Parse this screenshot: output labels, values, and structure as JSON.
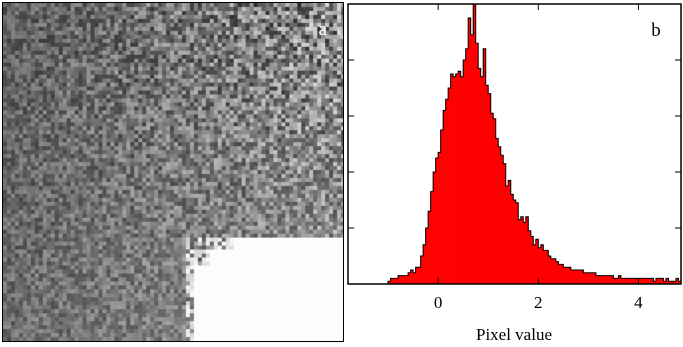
{
  "panels": {
    "a_label": "a",
    "b_label": "b"
  },
  "image_panel": {
    "type": "grayscale-image"
  },
  "colors": {
    "bar_fill": "#ff0000",
    "bar_stroke": "#000000"
  },
  "chart_data": {
    "type": "bar",
    "title": "",
    "xlabel": "Pixel value",
    "ylabel": "",
    "xlim": [
      -1.8,
      4.85
    ],
    "ylim": [
      0,
      1.0
    ],
    "x_ticks": [
      0,
      2,
      4
    ],
    "x_tick_labels": [
      "0",
      "2",
      "4"
    ],
    "y_ticks": [
      0.2,
      0.4,
      0.6,
      0.8
    ],
    "grid": false,
    "bin_width": 0.05,
    "x": [
      -1.0,
      -0.95,
      -0.9,
      -0.85,
      -0.8,
      -0.75,
      -0.7,
      -0.65,
      -0.6,
      -0.55,
      -0.5,
      -0.45,
      -0.4,
      -0.35,
      -0.3,
      -0.25,
      -0.2,
      -0.15,
      -0.1,
      -0.05,
      0.0,
      0.05,
      0.1,
      0.15,
      0.2,
      0.25,
      0.3,
      0.35,
      0.4,
      0.45,
      0.5,
      0.55,
      0.6,
      0.65,
      0.7,
      0.75,
      0.8,
      0.85,
      0.9,
      0.95,
      1.0,
      1.05,
      1.1,
      1.15,
      1.2,
      1.25,
      1.3,
      1.35,
      1.4,
      1.45,
      1.5,
      1.55,
      1.6,
      1.65,
      1.7,
      1.75,
      1.8,
      1.85,
      1.9,
      1.95,
      2.0,
      2.05,
      2.1,
      2.15,
      2.2,
      2.25,
      2.3,
      2.35,
      2.4,
      2.45,
      2.5,
      2.55,
      2.6,
      2.65,
      2.7,
      2.75,
      2.8,
      2.85,
      2.9,
      2.95,
      3.0,
      3.05,
      3.1,
      3.15,
      3.2,
      3.25,
      3.3,
      3.35,
      3.4,
      3.45,
      3.5,
      3.55,
      3.6,
      3.65,
      3.7,
      3.75,
      3.8,
      3.85,
      3.9,
      3.95,
      4.0,
      4.05,
      4.1,
      4.15,
      4.2,
      4.25,
      4.3,
      4.35,
      4.4,
      4.45,
      4.5,
      4.55,
      4.6,
      4.65,
      4.7,
      4.75,
      4.8
    ],
    "values": [
      0.01,
      0.02,
      0.02,
      0.02,
      0.03,
      0.03,
      0.03,
      0.03,
      0.04,
      0.05,
      0.04,
      0.06,
      0.06,
      0.1,
      0.14,
      0.2,
      0.26,
      0.33,
      0.4,
      0.45,
      0.47,
      0.55,
      0.62,
      0.66,
      0.7,
      0.75,
      0.74,
      0.75,
      0.76,
      0.74,
      0.8,
      0.84,
      0.95,
      0.89,
      1.0,
      0.86,
      0.77,
      0.74,
      0.84,
      0.71,
      0.68,
      0.61,
      0.59,
      0.52,
      0.49,
      0.46,
      0.43,
      0.35,
      0.37,
      0.32,
      0.3,
      0.29,
      0.23,
      0.24,
      0.22,
      0.24,
      0.19,
      0.17,
      0.14,
      0.16,
      0.13,
      0.14,
      0.12,
      0.12,
      0.1,
      0.09,
      0.09,
      0.08,
      0.07,
      0.07,
      0.06,
      0.06,
      0.06,
      0.05,
      0.05,
      0.05,
      0.05,
      0.05,
      0.04,
      0.04,
      0.04,
      0.04,
      0.04,
      0.03,
      0.03,
      0.03,
      0.03,
      0.03,
      0.03,
      0.03,
      0.02,
      0.02,
      0.03,
      0.02,
      0.02,
      0.02,
      0.02,
      0.02,
      0.02,
      0.02,
      0.02,
      0.02,
      0.02,
      0.02,
      0.02,
      0.02,
      0.01,
      0.02,
      0.02,
      0.02,
      0.01,
      0.02,
      0.01,
      0.01,
      0.01,
      0.02,
      0.01
    ]
  }
}
